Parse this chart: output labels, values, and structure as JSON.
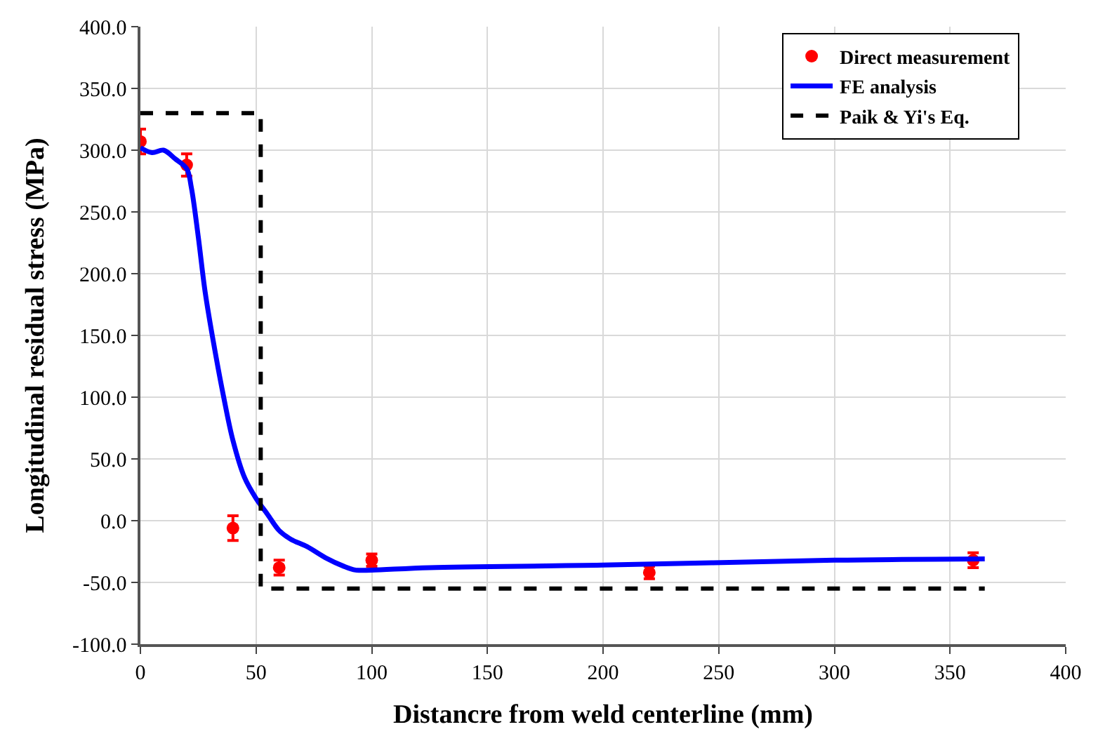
{
  "chart_data": {
    "type": "scatter",
    "xlabel": "Distancre from weld centerline (mm)",
    "ylabel": "Longitudinal residual stress (MPa)",
    "xlim": [
      0,
      400
    ],
    "xticks": [
      0,
      50,
      100,
      150,
      200,
      250,
      300,
      350,
      400
    ],
    "ylim": [
      -100,
      400
    ],
    "yticks": [
      {
        "value": -100,
        "label": "-100.0"
      },
      {
        "value": -50,
        "label": "-50.0"
      },
      {
        "value": 0,
        "label": "0.0"
      },
      {
        "value": 50,
        "label": "50.0"
      },
      {
        "value": 100,
        "label": "100.0"
      },
      {
        "value": 150,
        "label": "150.0"
      },
      {
        "value": 200,
        "label": "200.0"
      },
      {
        "value": 250,
        "label": "250.0"
      },
      {
        "value": 300,
        "label": "300.0"
      },
      {
        "value": 350,
        "label": "350.0"
      },
      {
        "value": 400,
        "label": "400.0"
      }
    ],
    "grid": true,
    "legend": "top right",
    "series": [
      {
        "name": "Direct measurement",
        "marker": "circle",
        "color": "#ff0000",
        "x": [
          0,
          20,
          40,
          60,
          100,
          220,
          360
        ],
        "values": [
          307,
          288,
          -6,
          -38,
          -32,
          -42,
          -32
        ],
        "errors": [
          10,
          9,
          10,
          6,
          5,
          5,
          6
        ]
      },
      {
        "name": "FE analysis",
        "type": "line",
        "line_style": "solid",
        "color": "#0000ff",
        "x": [
          0,
          5,
          10,
          15,
          20,
          22,
          25,
          28,
          32,
          36,
          40,
          45,
          50,
          55,
          60,
          65,
          72,
          80,
          88,
          93,
          100,
          125,
          200,
          300,
          365
        ],
        "values": [
          302,
          298,
          300,
          293,
          285,
          270,
          230,
          185,
          140,
          100,
          65,
          35,
          18,
          5,
          -8,
          -15,
          -21,
          -30,
          -37,
          -40,
          -40,
          -38,
          -36,
          -32,
          -31
        ]
      },
      {
        "name": "Paik & Yi's Eq.",
        "type": "line",
        "line_style": "dashed",
        "color": "#000000",
        "x": [
          0,
          52,
          52,
          365
        ],
        "values": [
          330,
          330,
          -55,
          -55
        ]
      }
    ]
  }
}
